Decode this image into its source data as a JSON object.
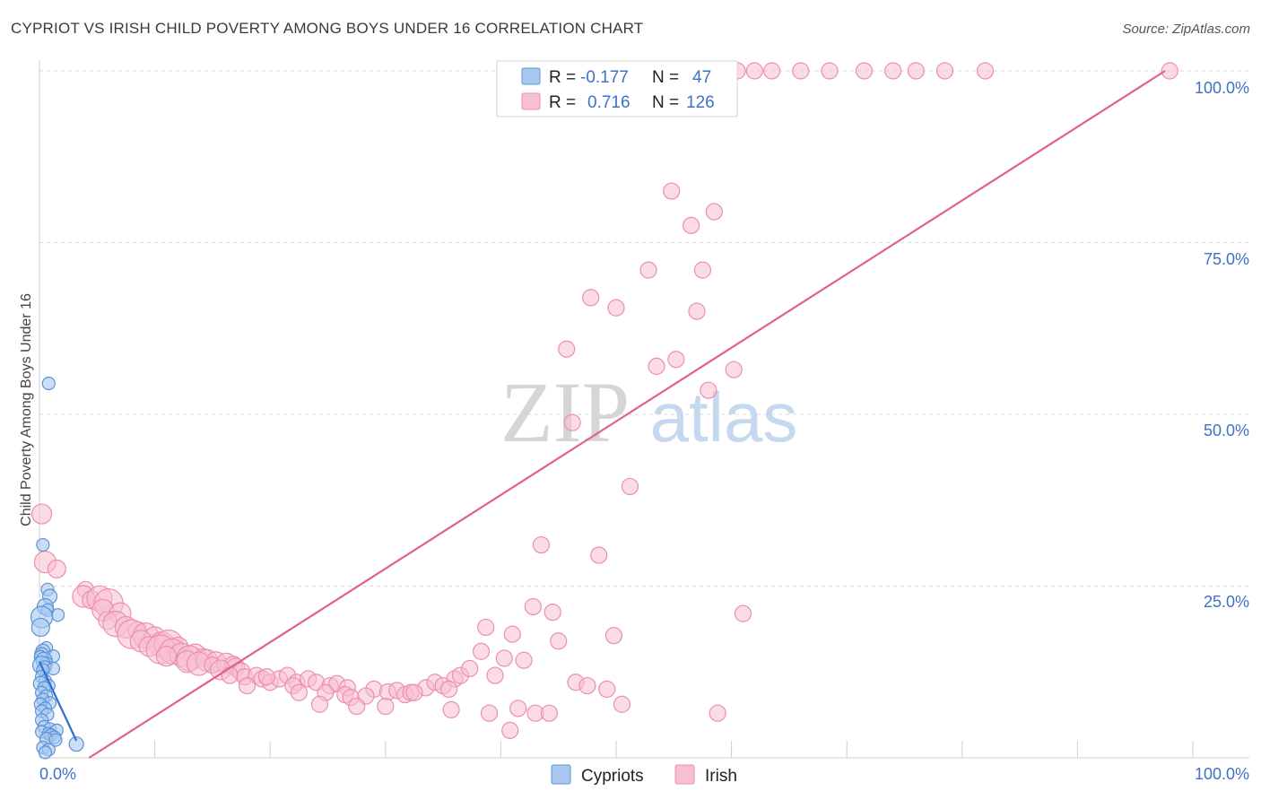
{
  "title": "CYPRIOT VS IRISH CHILD POVERTY AMONG BOYS UNDER 16 CORRELATION CHART",
  "source": "Source: ZipAtlas.com",
  "watermark": {
    "zip": "ZIP",
    "atlas": "atlas"
  },
  "colors": {
    "cypriot_fill": "#a8c8f0",
    "cypriot_stroke": "#5b93d8",
    "cypriot_line": "#2f6fcf",
    "irish_fill": "#f7bfd0",
    "irish_stroke": "#ec8fac",
    "irish_line": "#e0608c",
    "axis_value": "#3d72c4",
    "grid": "#d9d9d9"
  },
  "legend_box": {
    "rows": [
      {
        "r_label": "R =",
        "r_value": "-0.177",
        "n_label": "N =",
        "n_value": "47"
      },
      {
        "r_label": "R =",
        "r_value": "0.716",
        "n_label": "N =",
        "n_value": "126"
      }
    ]
  },
  "chart_data": {
    "type": "scatter",
    "xlabel": "",
    "ylabel": "Child Poverty Among Boys Under 16",
    "xlim": [
      0,
      100
    ],
    "ylim": [
      0,
      100
    ],
    "x_tick_labels": [
      "0.0%",
      "100.0%"
    ],
    "y_tick_labels": [
      "25.0%",
      "50.0%",
      "75.0%",
      "100.0%"
    ],
    "y_tick_values": [
      25,
      50,
      75,
      100
    ],
    "legend": [
      "Cypriots",
      "Irish"
    ],
    "series": [
      {
        "name": "Cypriots",
        "trend": {
          "x": [
            0,
            3.2
          ],
          "y": [
            14.0,
            2.5
          ]
        },
        "points": [
          [
            0.8,
            54.5,
            7
          ],
          [
            0.3,
            31.0,
            7
          ],
          [
            0.7,
            24.5,
            7
          ],
          [
            0.9,
            23.5,
            8
          ],
          [
            0.5,
            22.0,
            9
          ],
          [
            0.7,
            21.5,
            7
          ],
          [
            1.6,
            20.8,
            7
          ],
          [
            0.2,
            20.5,
            12
          ],
          [
            0.1,
            19.0,
            10
          ],
          [
            0.6,
            16.0,
            7
          ],
          [
            0.3,
            15.5,
            8
          ],
          [
            0.2,
            15.0,
            8
          ],
          [
            0.1,
            14.7,
            7
          ],
          [
            1.2,
            14.8,
            7
          ],
          [
            0.4,
            14.2,
            9
          ],
          [
            0.6,
            13.8,
            7
          ],
          [
            0.2,
            13.5,
            10
          ],
          [
            0.5,
            13.2,
            7
          ],
          [
            1.2,
            13.0,
            7
          ],
          [
            0.3,
            12.8,
            7
          ],
          [
            0.2,
            11.8,
            7
          ],
          [
            0.5,
            11.2,
            7
          ],
          [
            0.1,
            10.8,
            8
          ],
          [
            0.8,
            10.5,
            7
          ],
          [
            0.4,
            10.2,
            7
          ],
          [
            0.2,
            9.5,
            7
          ],
          [
            0.6,
            9.0,
            7
          ],
          [
            0.3,
            8.5,
            7
          ],
          [
            0.9,
            8.0,
            7
          ],
          [
            0.1,
            7.8,
            7
          ],
          [
            0.5,
            7.2,
            7
          ],
          [
            0.2,
            6.8,
            7
          ],
          [
            0.7,
            6.3,
            7
          ],
          [
            0.2,
            5.5,
            7
          ],
          [
            0.4,
            4.5,
            7
          ],
          [
            0.9,
            4.2,
            7
          ],
          [
            1.5,
            4.0,
            7
          ],
          [
            0.2,
            3.8,
            7
          ],
          [
            0.8,
            3.5,
            7
          ],
          [
            1.0,
            3.3,
            7
          ],
          [
            1.3,
            3.0,
            7
          ],
          [
            0.6,
            2.8,
            7
          ],
          [
            1.4,
            2.6,
            7
          ],
          [
            3.2,
            2.0,
            8
          ],
          [
            0.3,
            1.5,
            7
          ],
          [
            0.8,
            1.2,
            7
          ],
          [
            0.5,
            0.8,
            7
          ]
        ]
      },
      {
        "name": "Irish",
        "trend": {
          "x": [
            4.3,
            97.6
          ],
          "y": [
            0.0,
            100.0
          ]
        },
        "points": [
          [
            0.2,
            35.5,
            11
          ],
          [
            0.5,
            28.5,
            12
          ],
          [
            1.5,
            27.5,
            10
          ],
          [
            4.0,
            24.5,
            9
          ],
          [
            3.8,
            23.5,
            12
          ],
          [
            4.5,
            23.0,
            10
          ],
          [
            5.2,
            23.2,
            14
          ],
          [
            6.0,
            22.5,
            16
          ],
          [
            5.5,
            21.5,
            12
          ],
          [
            7.0,
            21.0,
            12
          ],
          [
            5.9,
            20.0,
            10
          ],
          [
            6.6,
            19.5,
            14
          ],
          [
            7.5,
            19.0,
            12
          ],
          [
            8.5,
            18.5,
            10
          ],
          [
            8.0,
            18.0,
            16
          ],
          [
            9.2,
            17.8,
            14
          ],
          [
            10.0,
            17.5,
            12
          ],
          [
            8.8,
            17.0,
            12
          ],
          [
            10.6,
            16.5,
            14
          ],
          [
            9.5,
            16.2,
            11
          ],
          [
            11.2,
            16.5,
            16
          ],
          [
            12.0,
            16.0,
            12
          ],
          [
            10.5,
            15.8,
            16
          ],
          [
            11.5,
            15.5,
            14
          ],
          [
            12.3,
            15.0,
            13
          ],
          [
            13.5,
            15.0,
            12
          ],
          [
            11.0,
            14.8,
            11
          ],
          [
            13.0,
            14.5,
            14
          ],
          [
            14.2,
            14.6,
            10
          ],
          [
            12.8,
            14.0,
            12
          ],
          [
            14.5,
            14.2,
            12
          ],
          [
            15.3,
            14.0,
            11
          ],
          [
            13.8,
            13.7,
            13
          ],
          [
            15.0,
            13.5,
            9
          ],
          [
            16.2,
            13.8,
            11
          ],
          [
            16.8,
            13.5,
            10
          ],
          [
            17.0,
            13.2,
            10
          ],
          [
            15.7,
            12.8,
            11
          ],
          [
            17.5,
            12.5,
            10
          ],
          [
            16.5,
            12.0,
            9
          ],
          [
            17.8,
            11.8,
            9
          ],
          [
            18.8,
            12.0,
            9
          ],
          [
            19.3,
            11.5,
            9
          ],
          [
            20.0,
            11.0,
            9
          ],
          [
            20.8,
            11.5,
            9
          ],
          [
            21.5,
            12.0,
            9
          ],
          [
            22.3,
            11.0,
            9
          ],
          [
            22.0,
            10.5,
            9
          ],
          [
            23.3,
            11.5,
            9
          ],
          [
            24.0,
            11.0,
            9
          ],
          [
            25.2,
            10.5,
            9
          ],
          [
            25.8,
            10.8,
            9
          ],
          [
            18.0,
            10.5,
            9
          ],
          [
            24.8,
            9.5,
            9
          ],
          [
            26.7,
            10.2,
            9
          ],
          [
            26.5,
            9.2,
            9
          ],
          [
            27.0,
            8.8,
            9
          ],
          [
            29.0,
            10.0,
            9
          ],
          [
            28.3,
            9.0,
            9
          ],
          [
            30.2,
            9.6,
            9
          ],
          [
            31.0,
            9.8,
            9
          ],
          [
            31.7,
            9.2,
            9
          ],
          [
            32.2,
            9.5,
            9
          ],
          [
            33.5,
            10.2,
            9
          ],
          [
            34.3,
            11.0,
            9
          ],
          [
            35.0,
            10.5,
            9
          ],
          [
            36.0,
            11.5,
            9
          ],
          [
            35.5,
            10.0,
            9
          ],
          [
            36.5,
            12.0,
            9
          ],
          [
            37.3,
            13.0,
            9
          ],
          [
            38.3,
            15.5,
            9
          ],
          [
            39.5,
            12.0,
            9
          ],
          [
            38.7,
            19.0,
            9
          ],
          [
            40.3,
            14.5,
            9
          ],
          [
            41.0,
            18.0,
            9
          ],
          [
            42.0,
            14.2,
            9
          ],
          [
            42.8,
            22.0,
            9
          ],
          [
            43.5,
            31.0,
            9
          ],
          [
            44.5,
            21.2,
            9
          ],
          [
            45.0,
            17.0,
            9
          ],
          [
            45.7,
            59.5,
            9
          ],
          [
            46.2,
            48.8,
            9
          ],
          [
            46.5,
            11.0,
            9
          ],
          [
            47.5,
            10.5,
            9
          ],
          [
            47.8,
            67.0,
            9
          ],
          [
            48.5,
            29.5,
            9
          ],
          [
            49.2,
            10.0,
            9
          ],
          [
            49.8,
            17.8,
            9
          ],
          [
            50.0,
            65.5,
            9
          ],
          [
            51.2,
            39.5,
            9
          ],
          [
            52.8,
            71.0,
            9
          ],
          [
            53.5,
            57.0,
            9
          ],
          [
            54.8,
            82.5,
            9
          ],
          [
            55.2,
            58.0,
            9
          ],
          [
            56.5,
            77.5,
            9
          ],
          [
            57.0,
            65.0,
            9
          ],
          [
            57.5,
            71.0,
            9
          ],
          [
            58.0,
            53.5,
            9
          ],
          [
            58.5,
            79.5,
            9
          ],
          [
            60.2,
            56.5,
            9
          ],
          [
            61.0,
            21.0,
            9
          ],
          [
            19.7,
            11.8,
            9
          ],
          [
            22.5,
            9.5,
            9
          ],
          [
            24.3,
            7.8,
            9
          ],
          [
            27.5,
            7.5,
            9
          ],
          [
            30.0,
            7.5,
            9
          ],
          [
            32.5,
            9.5,
            9
          ],
          [
            35.7,
            7.0,
            9
          ],
          [
            39.0,
            6.5,
            9
          ],
          [
            40.8,
            4.0,
            9
          ],
          [
            41.5,
            7.2,
            9
          ],
          [
            43.0,
            6.5,
            9
          ],
          [
            44.2,
            6.5,
            9
          ],
          [
            50.5,
            7.8,
            9
          ],
          [
            58.8,
            6.5,
            9
          ],
          [
            60.5,
            100.0,
            9
          ],
          [
            62.0,
            100.0,
            9
          ],
          [
            63.5,
            100.0,
            9
          ],
          [
            66.0,
            100.0,
            9
          ],
          [
            68.5,
            100.0,
            9
          ],
          [
            71.5,
            100.0,
            9
          ],
          [
            74.0,
            100.0,
            9
          ],
          [
            76.0,
            100.0,
            9
          ],
          [
            78.5,
            100.0,
            9
          ],
          [
            82.0,
            100.0,
            9
          ],
          [
            98.0,
            100.0,
            9
          ]
        ]
      }
    ]
  }
}
